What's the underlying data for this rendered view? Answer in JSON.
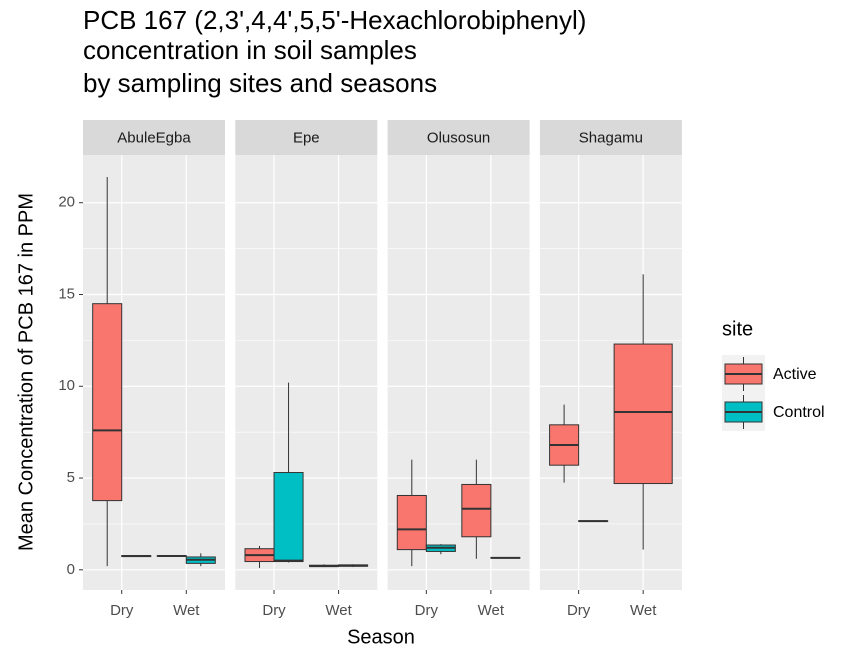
{
  "chart_data": {
    "type": "boxplot",
    "title": [
      "PCB 167 (2,3',4,4',5,5'-Hexachlorobiphenyl)",
      "concentration in soil samples",
      "by sampling sites and seasons"
    ],
    "x_label": "Season",
    "y_label": "Mean Concentration of PCB 167 in PPM",
    "legend_title": "site",
    "facets": [
      "AbuleEgba",
      "Epe",
      "Olusosun",
      "Shagamu"
    ],
    "categories": [
      "Dry",
      "Wet"
    ],
    "ylim": [
      -1.1,
      22.6
    ],
    "yticks": [
      0,
      5,
      10,
      15,
      20
    ],
    "grid": true,
    "series": [
      {
        "name": "Active",
        "color": "#F8766D",
        "values": [
          [
            {
              "min": 0.2,
              "q1": 3.77,
              "median": 7.6,
              "q3": 14.5,
              "max": 21.4
            },
            {
              "min": 0.72,
              "q1": 0.74,
              "median": 0.75,
              "q3": 0.77,
              "max": 0.78
            }
          ],
          [
            {
              "min": 0.1,
              "q1": 0.45,
              "median": 0.8,
              "q3": 1.15,
              "max": 1.3
            },
            {
              "min": 0.15,
              "q1": 0.18,
              "median": 0.2,
              "q3": 0.25,
              "max": 0.3
            }
          ],
          [
            {
              "min": 0.2,
              "q1": 1.1,
              "median": 2.2,
              "q3": 4.05,
              "max": 6.0
            },
            {
              "min": 0.6,
              "q1": 1.8,
              "median": 3.33,
              "q3": 4.65,
              "max": 6.0
            }
          ],
          [
            {
              "min": 4.75,
              "q1": 5.7,
              "median": 6.8,
              "q3": 7.9,
              "max": 9.0
            },
            {
              "min": 1.1,
              "q1": 4.7,
              "median": 8.6,
              "q3": 12.3,
              "max": 16.1
            }
          ]
        ]
      },
      {
        "name": "Control",
        "color": "#00BFC4",
        "values": [
          [
            {
              "min": 0.7,
              "q1": 0.72,
              "median": 0.75,
              "q3": 0.77,
              "max": 0.8
            },
            {
              "min": 0.2,
              "q1": 0.35,
              "median": 0.55,
              "q3": 0.7,
              "max": 0.9
            }
          ],
          [
            {
              "min": 0.4,
              "q1": 0.45,
              "median": 0.5,
              "q3": 5.3,
              "max": 10.2
            },
            {
              "min": 0.15,
              "q1": 0.2,
              "median": 0.22,
              "q3": 0.27,
              "max": 0.3
            }
          ],
          [
            {
              "min": 0.85,
              "q1": 1.0,
              "median": 1.2,
              "q3": 1.35,
              "max": 1.4
            },
            {
              "min": 0.62,
              "q1": 0.64,
              "median": 0.65,
              "q3": 0.67,
              "max": 0.68
            }
          ],
          [
            {
              "min": 2.62,
              "q1": 2.64,
              "median": 2.65,
              "q3": 2.67,
              "max": 2.68
            },
            null
          ]
        ]
      }
    ]
  }
}
